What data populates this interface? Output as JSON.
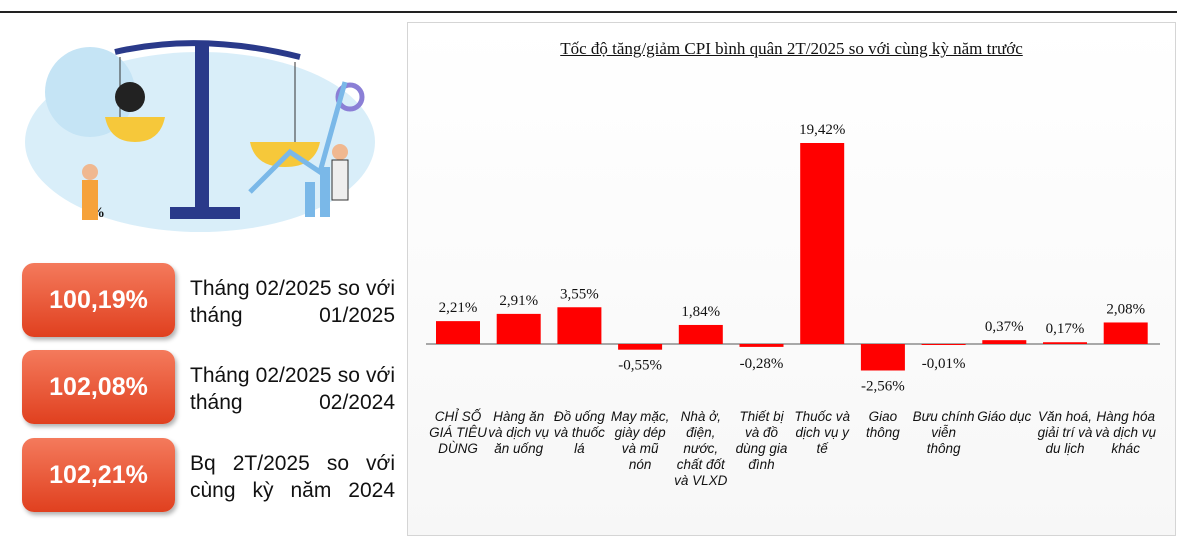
{
  "stats": [
    {
      "value": "100,19%",
      "text": "Tháng 02/2025 so với tháng 01/2025"
    },
    {
      "value": "102,08%",
      "text": "Tháng 02/2025 so với tháng 02/2024"
    },
    {
      "value": "102,21%",
      "text": "Bq 2T/2025 so với cùng kỳ năm 2024"
    }
  ],
  "chart_data": {
    "type": "bar",
    "title": "Tốc độ tăng/giảm CPI bình quân 2T/2025 so với cùng kỳ năm trước",
    "categories": [
      "CHỈ SỐ GIÁ TIÊU DÙNG",
      "Hàng ăn và dịch vụ ăn uống",
      "Đồ uống và thuốc lá",
      "May mặc, giày dép và mũ nón",
      "Nhà ở, điện, nước, chất đốt và VLXD",
      "Thiết bị và đồ dùng gia đình",
      "Thuốc và dịch vụ y tế",
      "Giao thông",
      "Bưu chính viễn thông",
      "Giáo dục",
      "Văn hoá, giải trí và du lịch",
      "Hàng hóa và dịch vụ khác"
    ],
    "values": [
      2.21,
      2.91,
      3.55,
      -0.55,
      1.84,
      -0.28,
      19.42,
      -2.56,
      -0.01,
      0.37,
      0.17,
      2.08
    ],
    "value_labels": [
      "2,21%",
      "2,91%",
      "3,55%",
      "-0,55%",
      "1,84%",
      "-0,28%",
      "19,42%",
      "-2,56%",
      "-0,01%",
      "0,37%",
      "0,17%",
      "2,08%"
    ],
    "color": "#ff0000"
  }
}
